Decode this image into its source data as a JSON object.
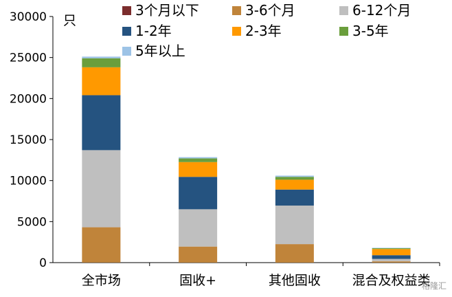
{
  "chart_data": {
    "type": "bar",
    "stacked": true,
    "ylabel": "只",
    "ylim": [
      0,
      30000
    ],
    "yticks": [
      "0",
      "5000",
      "10000",
      "15000",
      "20000",
      "25000",
      "30000"
    ],
    "categories": [
      "全市场",
      "固收+",
      "其他固收",
      "混合及权益类"
    ],
    "series": [
      {
        "name": "3个月以下",
        "color": "#7B2D2D",
        "values": [
          10,
          5,
          5,
          5
        ]
      },
      {
        "name": "3-6个月",
        "color": "#C0843A",
        "values": [
          4300,
          1950,
          2250,
          150
        ]
      },
      {
        "name": "6-12个月",
        "color": "#BFBFBF",
        "values": [
          9400,
          4550,
          4700,
          300
        ]
      },
      {
        "name": "1-2年",
        "color": "#255380",
        "values": [
          6700,
          3950,
          1950,
          450
        ]
      },
      {
        "name": "2-3年",
        "color": "#FF9900",
        "values": [
          3400,
          1800,
          1200,
          750
        ]
      },
      {
        "name": "3-5年",
        "color": "#6A9E3C",
        "values": [
          1100,
          450,
          350,
          100
        ]
      },
      {
        "name": "5年以上",
        "color": "#9DC3E6",
        "values": [
          200,
          150,
          150,
          50
        ]
      }
    ],
    "legend_position": "top-right",
    "grid": false
  },
  "watermark": "格隆汇"
}
